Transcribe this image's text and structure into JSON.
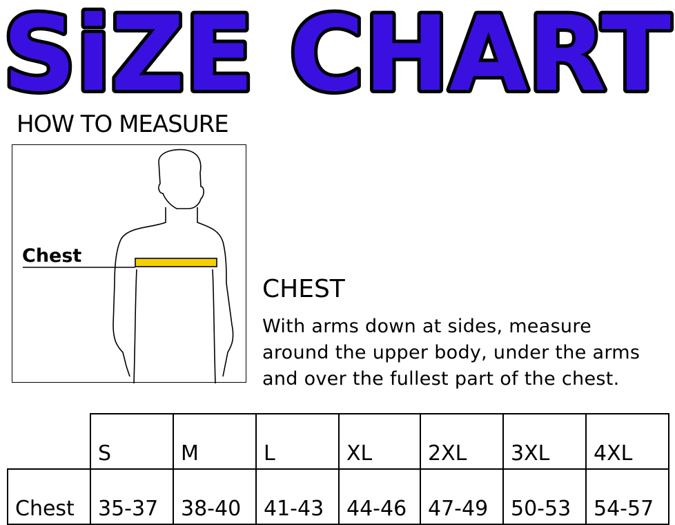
{
  "title": "SiZE CHART",
  "title_color": "#3a10e0",
  "how_to_measure": "HOW TO MEASURE",
  "figure_label": "Chest",
  "tape_color": "#f5d000",
  "instructions": {
    "heading": "CHEST",
    "lines": [
      "With arms down at sides, measure",
      "around the upper body, under the arms",
      "and over the fullest part of the chest."
    ]
  },
  "table": {
    "sizes": [
      "S",
      "M",
      "L",
      "XL",
      "2XL",
      "3XL",
      "4XL"
    ],
    "row_label": "Chest",
    "values": [
      "35-37",
      "38-40",
      "41-43",
      "44-46",
      "47-49",
      "50-53",
      "54-57"
    ]
  }
}
